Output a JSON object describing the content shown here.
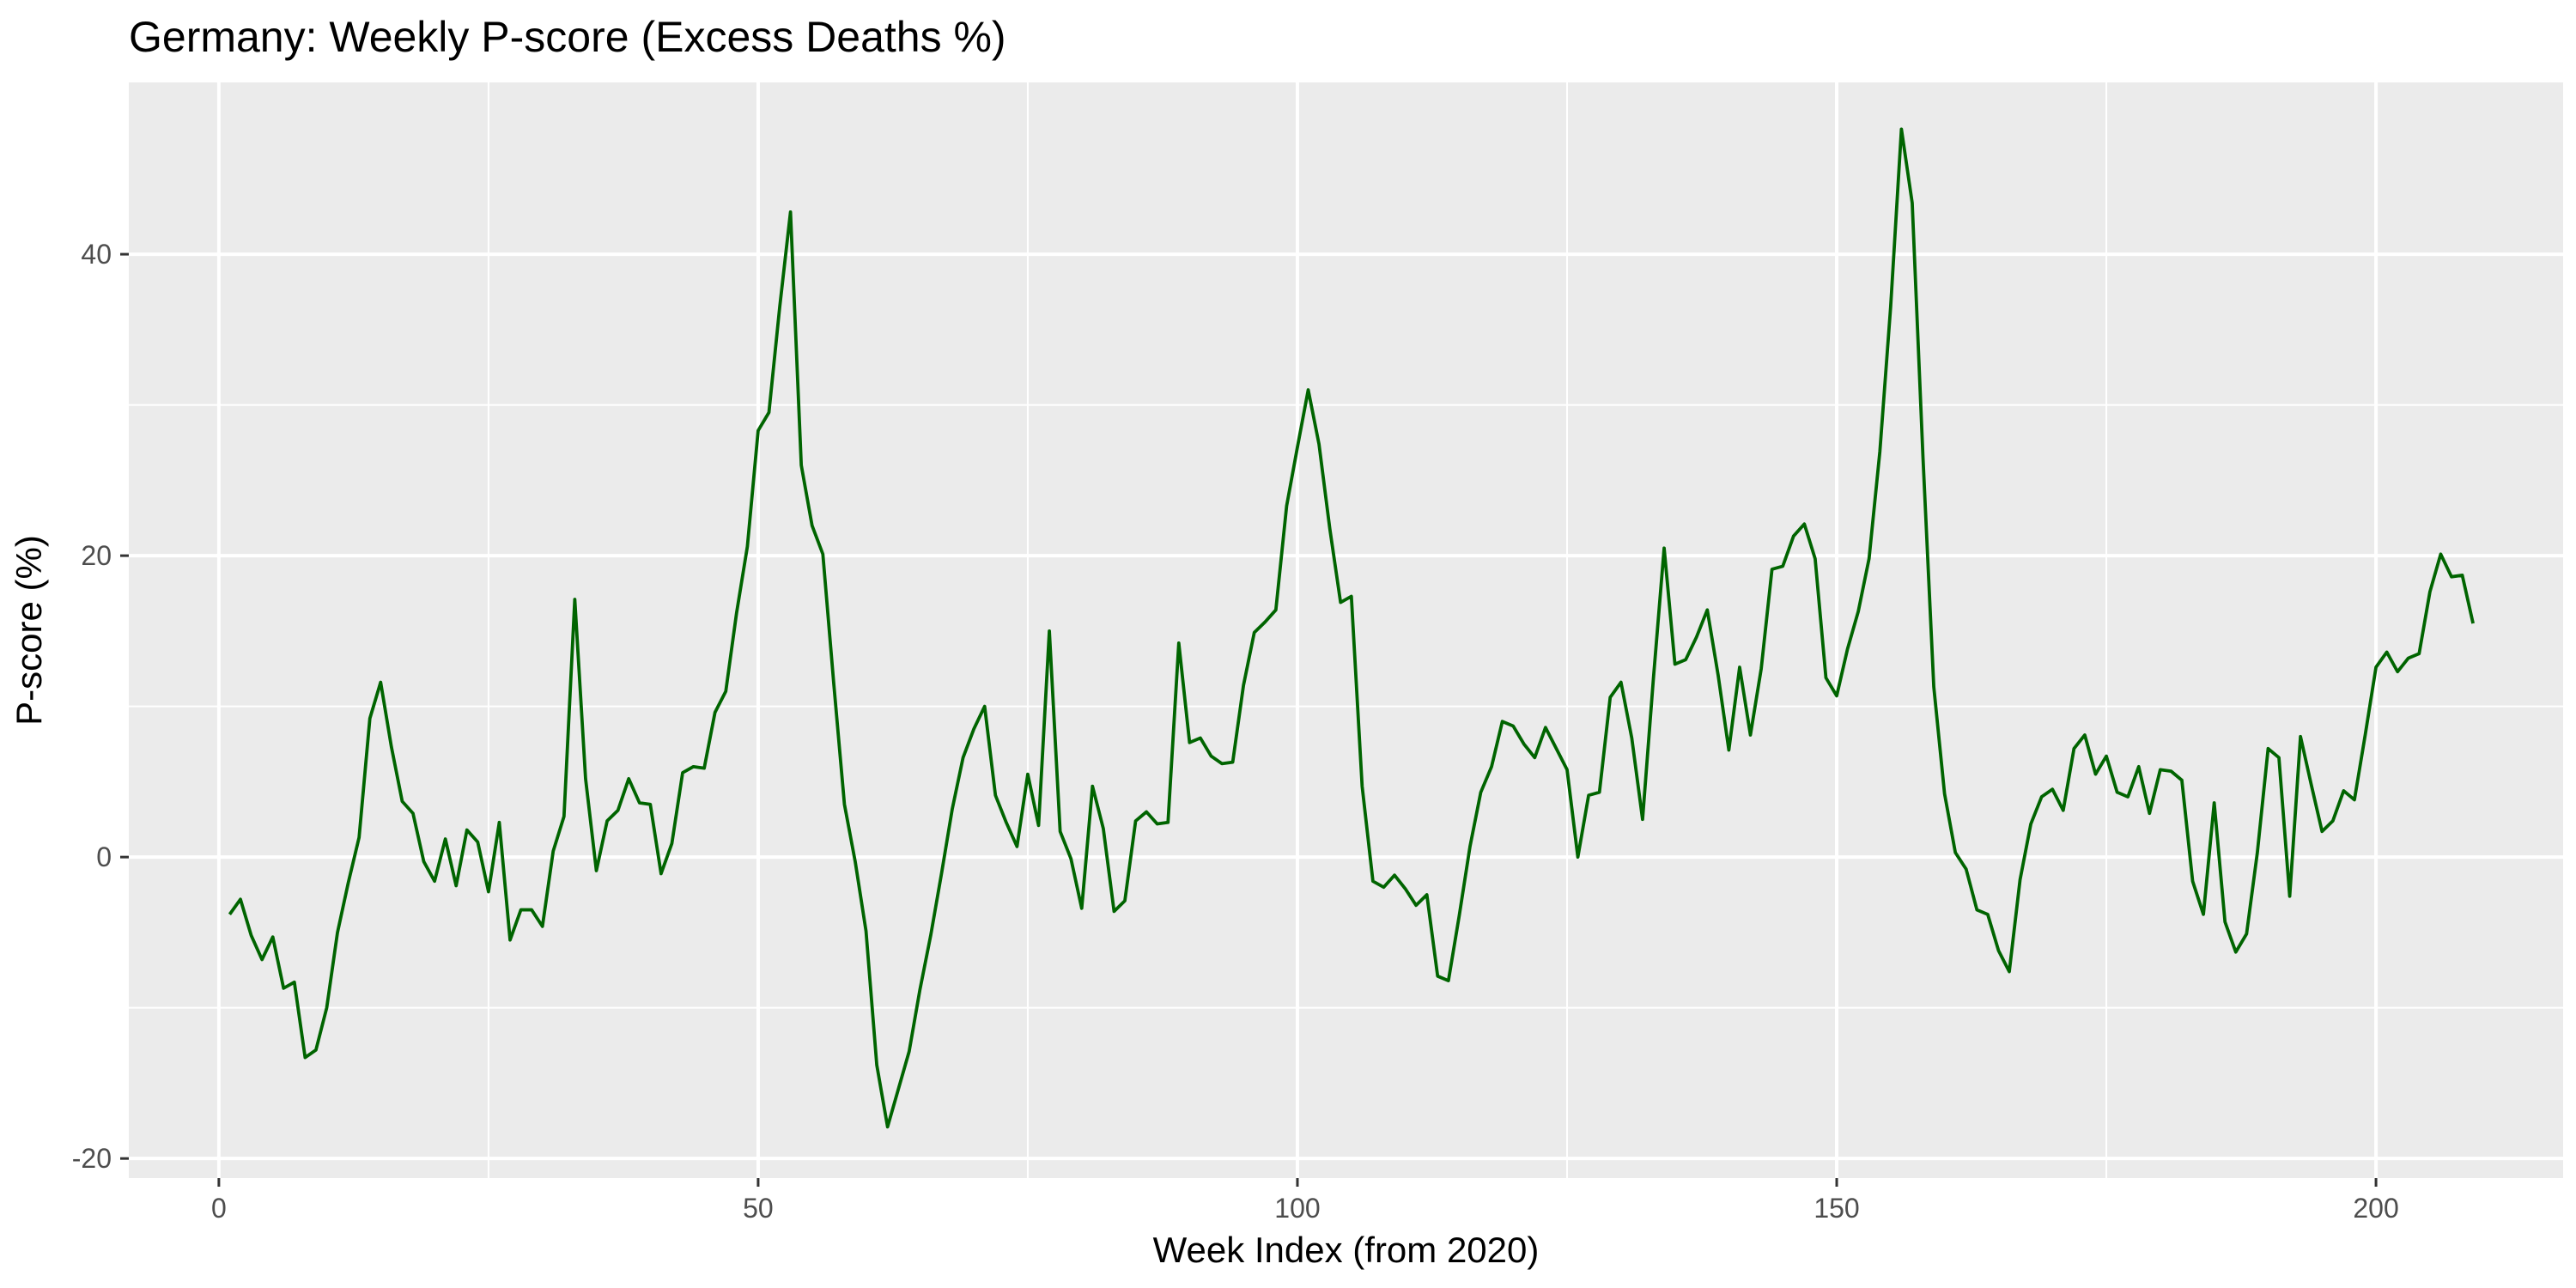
{
  "chart_data": {
    "type": "line",
    "title": "Germany: Weekly P-score (Excess Deaths %)",
    "xlabel": "Week Index (from 2020)",
    "ylabel": "P-score (%)",
    "xlim": [
      -8.35,
      217.35
    ],
    "ylim": [
      -21.3,
      51.4
    ],
    "x_ticks": [
      0,
      50,
      100,
      150,
      200
    ],
    "x_tick_labels": [
      "0",
      "50",
      "100",
      "150",
      "200"
    ],
    "x_minor_ticks": [
      25,
      75,
      125,
      175
    ],
    "y_ticks": [
      -20,
      0,
      20,
      40
    ],
    "y_tick_labels": [
      "-20",
      "0",
      "20",
      "40"
    ],
    "y_minor_ticks": [
      -10,
      10,
      30
    ],
    "grid": true,
    "line_color": "#006400",
    "panel_color": "#EBEBEB",
    "grid_color": "#FFFFFF",
    "series": [
      {
        "name": "P-score",
        "x_start": 1,
        "values": [
          -3.8,
          -2.8,
          -5.2,
          -6.8,
          -5.3,
          -8.7,
          -8.3,
          -13.3,
          -12.8,
          -10.0,
          -5.0,
          -1.7,
          1.3,
          9.2,
          11.6,
          7.3,
          3.7,
          2.9,
          -0.3,
          -1.6,
          1.2,
          -1.9,
          1.8,
          1.0,
          -2.3,
          2.3,
          -5.5,
          -3.5,
          -3.5,
          -4.6,
          0.4,
          2.7,
          17.1,
          5.2,
          -0.9,
          2.4,
          3.1,
          5.2,
          3.6,
          3.5,
          -1.1,
          0.9,
          5.6,
          6.0,
          5.9,
          9.6,
          11.0,
          16.2,
          20.6,
          28.3,
          29.5,
          36.5,
          42.8,
          26.0,
          22.0,
          20.1,
          11.6,
          3.5,
          -0.3,
          -4.9,
          -13.8,
          -17.9,
          -15.4,
          -12.9,
          -8.8,
          -5.2,
          -1.1,
          3.2,
          6.6,
          8.5,
          10.0,
          4.1,
          2.3,
          0.7,
          5.5,
          2.1,
          15.0,
          1.7,
          -0.1,
          -3.4,
          4.7,
          1.9,
          -3.6,
          -2.9,
          2.4,
          3.0,
          2.2,
          2.3,
          14.2,
          7.6,
          7.9,
          6.7,
          6.2,
          6.3,
          11.4,
          14.9,
          15.6,
          16.4,
          23.3,
          27.2,
          31.0,
          27.4,
          21.8,
          16.9,
          17.3,
          4.7,
          -1.6,
          -2.0,
          -1.2,
          -2.1,
          -3.2,
          -2.5,
          -7.9,
          -8.2,
          -3.9,
          0.7,
          4.3,
          6.0,
          9.0,
          8.7,
          7.5,
          6.6,
          8.6,
          7.2,
          5.8,
          0.0,
          4.1,
          4.3,
          10.6,
          11.6,
          7.9,
          2.5,
          11.8,
          20.5,
          12.8,
          13.1,
          14.6,
          16.4,
          12.1,
          7.1,
          12.6,
          8.1,
          12.5,
          19.1,
          19.3,
          21.3,
          22.1,
          19.8,
          11.9,
          10.7,
          13.8,
          16.3,
          19.8,
          26.9,
          36.5,
          48.3,
          43.4,
          26.5,
          11.3,
          4.2,
          0.3,
          -0.8,
          -3.5,
          -3.8,
          -6.2,
          -7.6,
          -1.5,
          2.2,
          4.0,
          4.5,
          3.1,
          7.2,
          8.1,
          5.5,
          6.7,
          4.3,
          4.0,
          6.0,
          2.9,
          5.8,
          5.7,
          5.1,
          -1.6,
          -3.8,
          3.6,
          -4.3,
          -6.3,
          -5.1,
          0.3,
          7.2,
          6.6,
          -2.6,
          8.0,
          4.8,
          1.7,
          2.4,
          4.4,
          3.8,
          8.1,
          12.6,
          13.6,
          12.3,
          13.2,
          13.5,
          17.6,
          20.1,
          18.6,
          18.7,
          15.5
        ]
      }
    ]
  }
}
